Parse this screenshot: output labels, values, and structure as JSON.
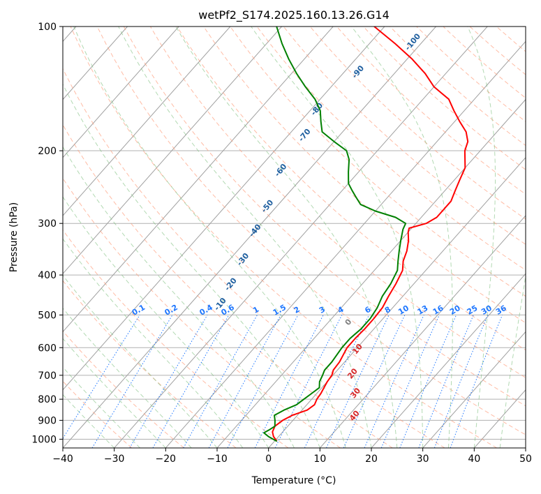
{
  "chart_data": {
    "type": "line",
    "title": "wetPf2_S174.2025.160.13.26.G14",
    "xlabel": "Temperature (°C)",
    "ylabel": "Pressure (hPa)",
    "xlim": [
      -40,
      50
    ],
    "ylim": [
      1050,
      100
    ],
    "y_scale": "log",
    "x_ticks": [
      -40,
      -30,
      -20,
      -10,
      0,
      10,
      20,
      30,
      40,
      50
    ],
    "x_tick_labels": [
      "−40",
      "−30",
      "−20",
      "−10",
      "0",
      "10",
      "20",
      "30",
      "40",
      "50"
    ],
    "y_ticks": [
      100,
      200,
      300,
      400,
      500,
      600,
      700,
      800,
      900,
      1000
    ],
    "y_tick_labels": [
      "100",
      "200",
      "300",
      "400",
      "500",
      "600",
      "700",
      "800",
      "900",
      "1000"
    ],
    "grid": true,
    "series": [
      {
        "color": "#ff0000",
        "points": [
          [
            1012,
            0.5
          ],
          [
            985,
            -1.0
          ],
          [
            960,
            -2.0
          ],
          [
            930,
            -2.5
          ],
          [
            900,
            -2.0
          ],
          [
            875,
            -1.0
          ],
          [
            850,
            1.0
          ],
          [
            825,
            1.5
          ],
          [
            800,
            1.0
          ],
          [
            775,
            0.8
          ],
          [
            750,
            0.4
          ],
          [
            725,
            0.0
          ],
          [
            700,
            -0.2
          ],
          [
            680,
            -0.8
          ],
          [
            650,
            -1.0
          ],
          [
            600,
            -2.0
          ],
          [
            570,
            -2.0
          ],
          [
            540,
            -1.8
          ],
          [
            510,
            -1.8
          ],
          [
            480,
            -2.0
          ],
          [
            450,
            -2.8
          ],
          [
            420,
            -3.5
          ],
          [
            390,
            -4.5
          ],
          [
            370,
            -6.0
          ],
          [
            350,
            -7.0
          ],
          [
            330,
            -8.5
          ],
          [
            315,
            -10.0
          ],
          [
            308,
            -10.5
          ],
          [
            300,
            -8.0
          ],
          [
            290,
            -7.0
          ],
          [
            280,
            -7.0
          ],
          [
            265,
            -7.0
          ],
          [
            250,
            -8.0
          ],
          [
            235,
            -9.0
          ],
          [
            220,
            -10.0
          ],
          [
            200,
            -13.0
          ],
          [
            190,
            -14.0
          ],
          [
            180,
            -16.0
          ],
          [
            170,
            -19.0
          ],
          [
            160,
            -22.0
          ],
          [
            150,
            -25.0
          ],
          [
            140,
            -30.0
          ],
          [
            130,
            -34.0
          ],
          [
            120,
            -39.0
          ],
          [
            110,
            -45.0
          ],
          [
            100,
            -52.0
          ]
        ]
      },
      {
        "color": "#008000",
        "points": [
          [
            1012,
            0.5
          ],
          [
            985,
            -2.0
          ],
          [
            965,
            -3.5
          ],
          [
            950,
            -3.0
          ],
          [
            930,
            -2.5
          ],
          [
            900,
            -3.5
          ],
          [
            875,
            -4.5
          ],
          [
            850,
            -3.5
          ],
          [
            825,
            -2.0
          ],
          [
            800,
            -1.5
          ],
          [
            775,
            -1.0
          ],
          [
            750,
            -0.5
          ],
          [
            725,
            -1.5
          ],
          [
            700,
            -2.0
          ],
          [
            680,
            -2.5
          ],
          [
            650,
            -2.5
          ],
          [
            600,
            -3.0
          ],
          [
            570,
            -3.0
          ],
          [
            540,
            -2.5
          ],
          [
            510,
            -2.5
          ],
          [
            480,
            -3.0
          ],
          [
            450,
            -4.0
          ],
          [
            420,
            -4.5
          ],
          [
            390,
            -5.5
          ],
          [
            370,
            -7.0
          ],
          [
            350,
            -8.5
          ],
          [
            330,
            -10.0
          ],
          [
            310,
            -11.5
          ],
          [
            300,
            -12.0
          ],
          [
            290,
            -15.0
          ],
          [
            280,
            -20.0
          ],
          [
            270,
            -24.0
          ],
          [
            260,
            -26.0
          ],
          [
            250,
            -28.0
          ],
          [
            240,
            -30.0
          ],
          [
            225,
            -32.0
          ],
          [
            210,
            -34.0
          ],
          [
            200,
            -36.0
          ],
          [
            190,
            -40.0
          ],
          [
            180,
            -44.0
          ],
          [
            170,
            -46.0
          ],
          [
            160,
            -48.0
          ],
          [
            150,
            -51.0
          ],
          [
            140,
            -55.0
          ],
          [
            130,
            -59.0
          ],
          [
            120,
            -63.0
          ],
          [
            110,
            -67.0
          ],
          [
            100,
            -71.0
          ]
        ]
      }
    ],
    "annotations": {
      "moist_adiabat_labels": [
        "-100",
        "-90",
        "-80",
        "-70",
        "-60",
        "-50",
        "-40",
        "-30",
        "-20",
        "-10"
      ],
      "mixing_ratio_labels": [
        "0.1",
        "0.2",
        "0.4",
        "0.6",
        "1",
        "1.5",
        "2",
        "3",
        "4",
        "6",
        "8",
        "10",
        "13",
        "16",
        "20",
        "25",
        "30",
        "36"
      ],
      "dry_adiabat_labels": [
        "0",
        "10",
        "20",
        "30",
        "40"
      ]
    },
    "colors": {
      "temperature_line": "#ff0000",
      "dewpoint_line": "#008000",
      "isotherms": "#a0a0a0",
      "isobars": "#b0b0b0",
      "dry_adiabats": "#ff9f7f",
      "moist_adiabats": "#7fbf7f",
      "mixing_ratio": "#1f77ff",
      "moist_label": "#1f5f9f",
      "dry_label": "#d62728",
      "zero_label": "#808080"
    }
  }
}
